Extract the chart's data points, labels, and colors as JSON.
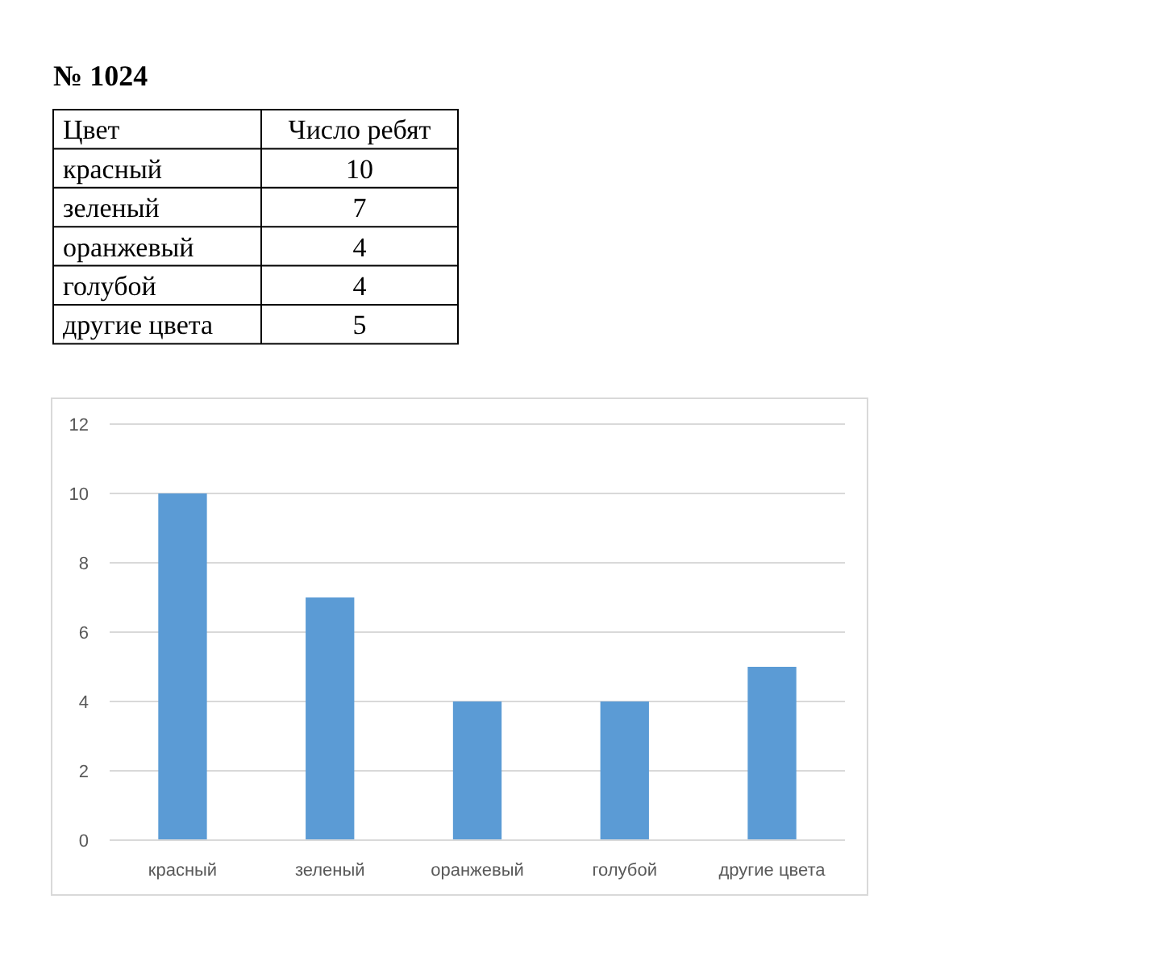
{
  "chart_data": [
    {
      "type": "other",
      "title": "№ 1024",
      "annotations": [
        "Цвет",
        "Число ребят",
        "красный",
        "10",
        "зеленый",
        "7",
        "оранжевый",
        "4",
        "голубой",
        "4",
        "другие цвета",
        "5"
      ]
    },
    {
      "type": "bar",
      "categories": [
        "красный",
        "зеленый",
        "оранжевый",
        "голубой",
        "другие цвета"
      ],
      "values": [
        10,
        7,
        4,
        4,
        5
      ],
      "color": "#5b9bd5",
      "ylim": [
        0,
        12
      ],
      "yticks": [
        0,
        2,
        4,
        6,
        8,
        10,
        12
      ],
      "grid": "y"
    }
  ]
}
